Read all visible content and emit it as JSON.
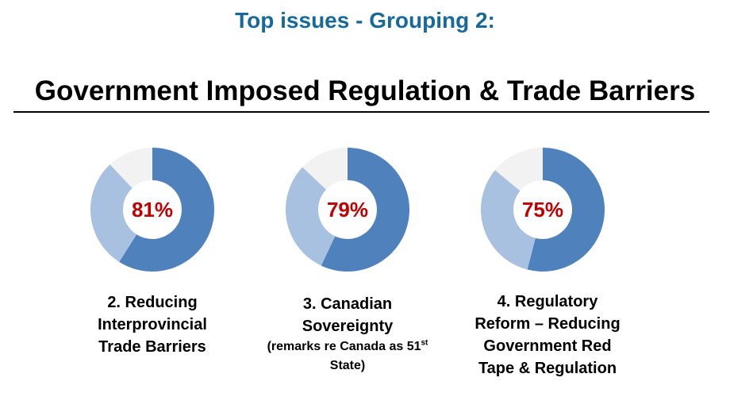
{
  "header": {
    "subtitle": "Top issues - Grouping 2:",
    "title": "Government Imposed Regulation & Trade Barriers"
  },
  "colors": {
    "primary": "#4f81bd",
    "secondary": "#a8c1e0",
    "remainder": "#f2f2f2",
    "percent_text": "#c00000"
  },
  "chart_data": [
    {
      "type": "pie",
      "label_lines": [
        "2. Reducing",
        "Interprovincial",
        "Trade Barriers"
      ],
      "percent_label": "81%",
      "values": [
        59,
        29,
        12
      ]
    },
    {
      "type": "pie",
      "label_lines": [
        "3. Canadian",
        "Sovereignty"
      ],
      "note": "(remarks re Canada as 51",
      "note_sup": "st",
      "note_end": " State)",
      "percent_label": "79%",
      "values": [
        57,
        30,
        13
      ]
    },
    {
      "type": "pie",
      "label_lines": [
        "4. Regulatory",
        "Reform – Reducing",
        "Government Red",
        "Tape & Regulation"
      ],
      "percent_label": "75%",
      "values": [
        54,
        32,
        14
      ]
    }
  ]
}
